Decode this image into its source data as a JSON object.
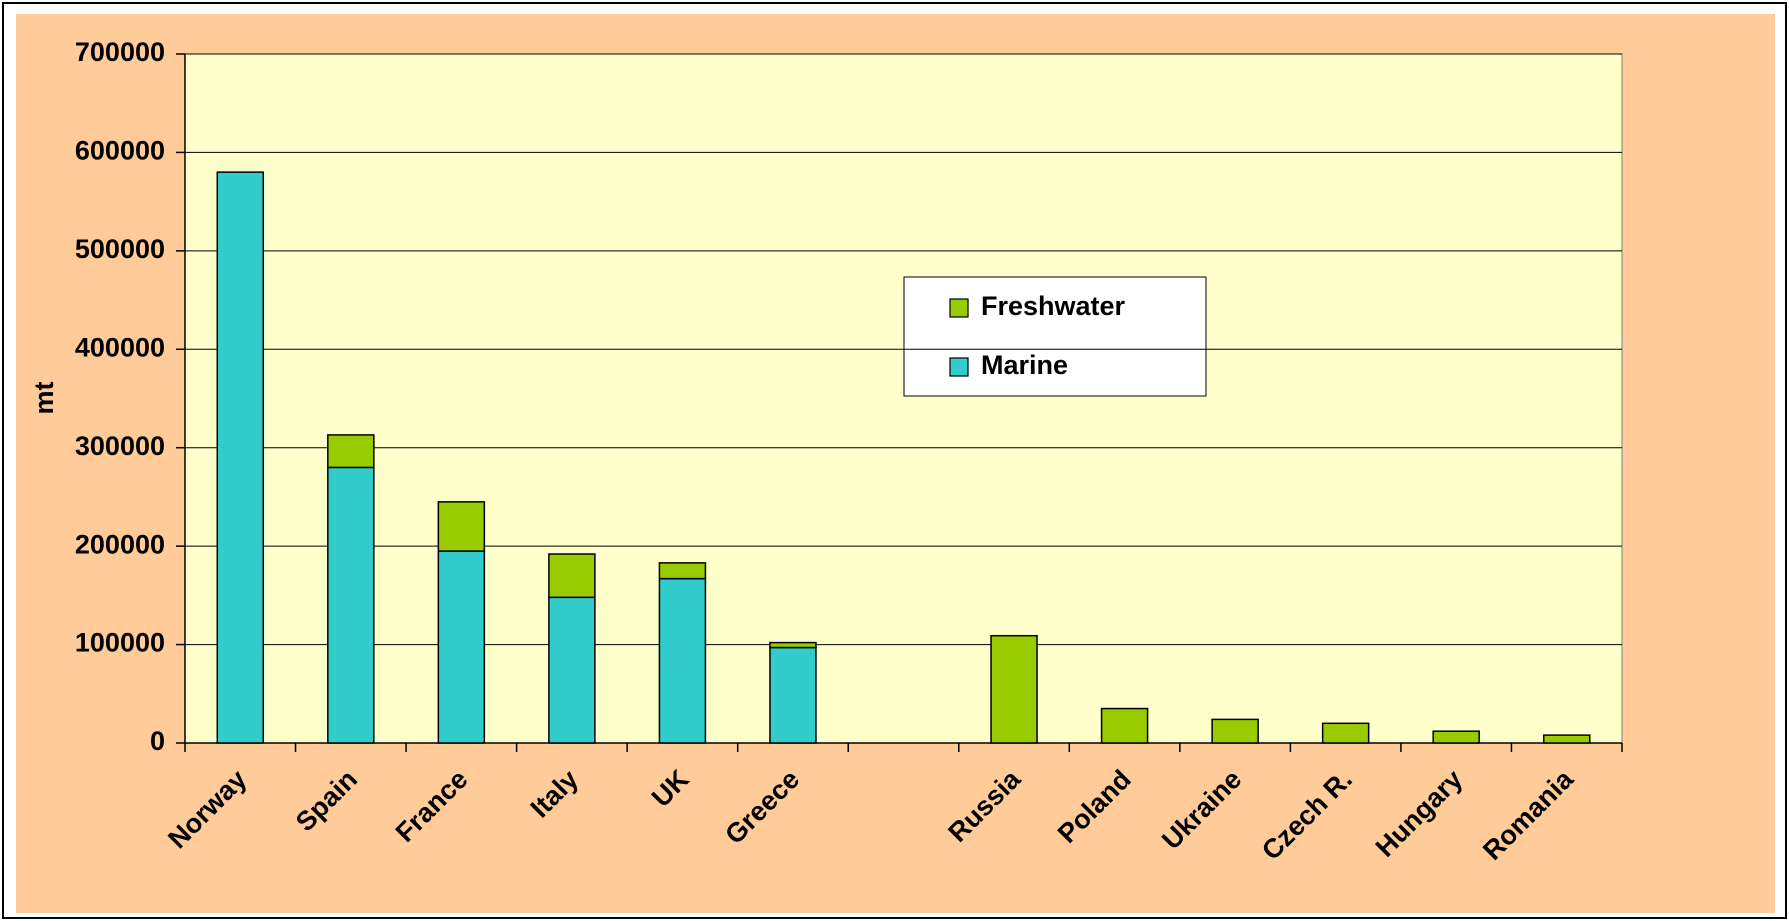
{
  "chart_data": {
    "type": "stacked_bar",
    "ylabel": "mt",
    "categories": [
      "Norway",
      "Spain",
      "France",
      "Italy",
      "UK",
      "Greece",
      null,
      "Russia",
      "Poland",
      "Ukraine",
      "Czech R.",
      "Hungary",
      "Romania"
    ],
    "series": [
      {
        "name": "Marine",
        "color": "#33cccc",
        "values": [
          580000,
          280000,
          195000,
          148000,
          167000,
          97000,
          null,
          0,
          0,
          0,
          0,
          0,
          0
        ]
      },
      {
        "name": "Freshwater",
        "color": "#99cc00",
        "values": [
          0,
          33000,
          50000,
          44000,
          16000,
          5000,
          null,
          109000,
          35000,
          24000,
          20000,
          12000,
          8000
        ]
      }
    ],
    "ylim": [
      0,
      700000
    ],
    "yticks": [
      0,
      100000,
      200000,
      300000,
      400000,
      500000,
      600000,
      700000
    ],
    "grid": true
  }
}
